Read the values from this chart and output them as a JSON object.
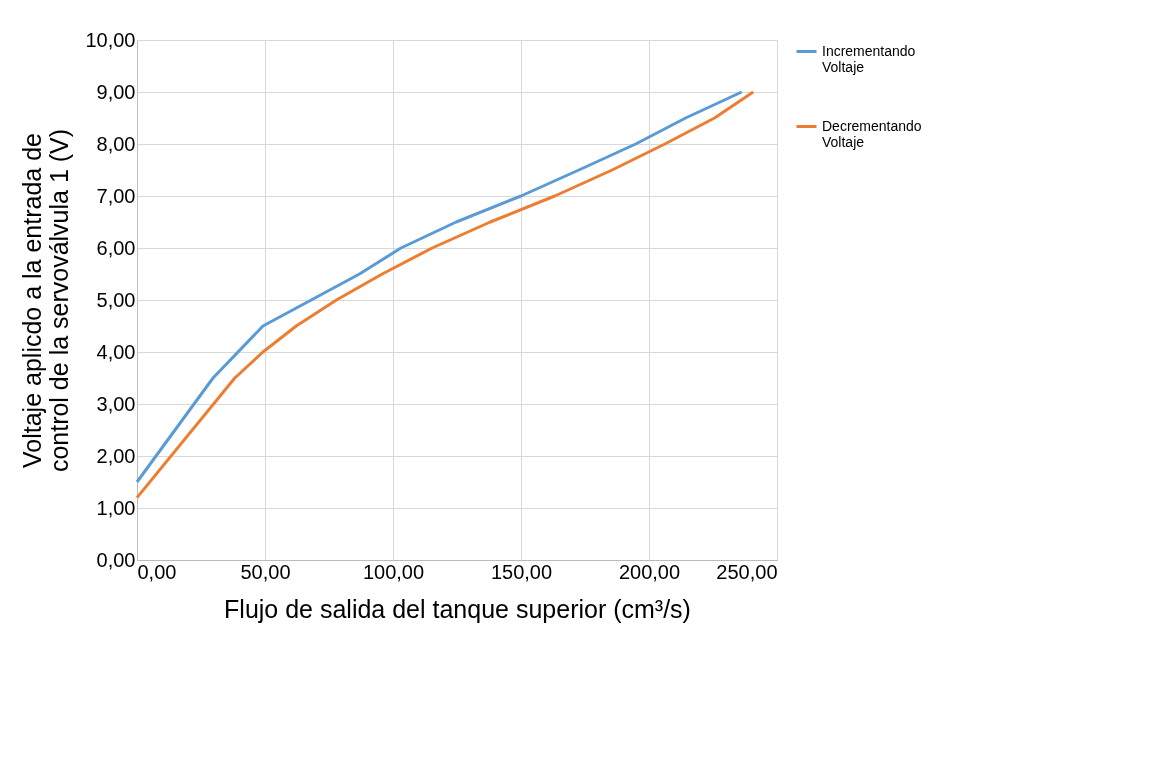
{
  "chart_data": {
    "type": "line",
    "xlabel": "Flujo de salida del tanque superior (cm³/s)",
    "ylabel": "Voltaje aplicdo a la entrada de control de la servoválvula 1 (V)",
    "series": [
      {
        "name": "Incrementando Voltaje",
        "color": "#5b9bd5",
        "x": [
          0,
          29.7,
          49.2,
          86.9,
          103.1,
          124.7,
          150,
          172.6,
          194.8,
          214.3,
          236.2
        ],
        "values": [
          1.5,
          3.5,
          4.5,
          5.5,
          6.0,
          6.5,
          7.0,
          7.5,
          8.0,
          8.5,
          9.0
        ]
      },
      {
        "name": "Decrementando Voltaje",
        "color": "#ed7d31",
        "x": [
          0,
          38.2,
          49.2,
          62.2,
          77.9,
          95.8,
          115.3,
          138,
          163.2,
          185.6,
          206.2,
          225.6,
          240.7
        ],
        "values": [
          1.2,
          3.5,
          4.0,
          4.5,
          5.0,
          5.5,
          6.0,
          6.5,
          7.0,
          7.5,
          8.0,
          8.5,
          9.0
        ]
      }
    ],
    "xlim": [
      0,
      250
    ],
    "xticks": [
      {
        "value": 0,
        "label": "0,00"
      },
      {
        "value": 50,
        "label": "50,00"
      },
      {
        "value": 100,
        "label": "100,00"
      },
      {
        "value": 150,
        "label": "150,00"
      },
      {
        "value": 200,
        "label": "200,00"
      },
      {
        "value": 250,
        "label": "250,00"
      }
    ],
    "ylim": [
      0,
      10
    ],
    "yticks": [
      {
        "value": 0,
        "label": "0,00"
      },
      {
        "value": 1,
        "label": "1,00"
      },
      {
        "value": 2,
        "label": "2,00"
      },
      {
        "value": 3,
        "label": "3,00"
      },
      {
        "value": 4,
        "label": "4,00"
      },
      {
        "value": 5,
        "label": "5,00"
      },
      {
        "value": 6,
        "label": "6,00"
      },
      {
        "value": 7,
        "label": "7,00"
      },
      {
        "value": 8,
        "label": "8,00"
      },
      {
        "value": 9,
        "label": "9,00"
      },
      {
        "value": 10,
        "label": "10,00"
      }
    ],
    "grid": true,
    "legend": "right",
    "marker": "none",
    "line_style": "solid"
  }
}
